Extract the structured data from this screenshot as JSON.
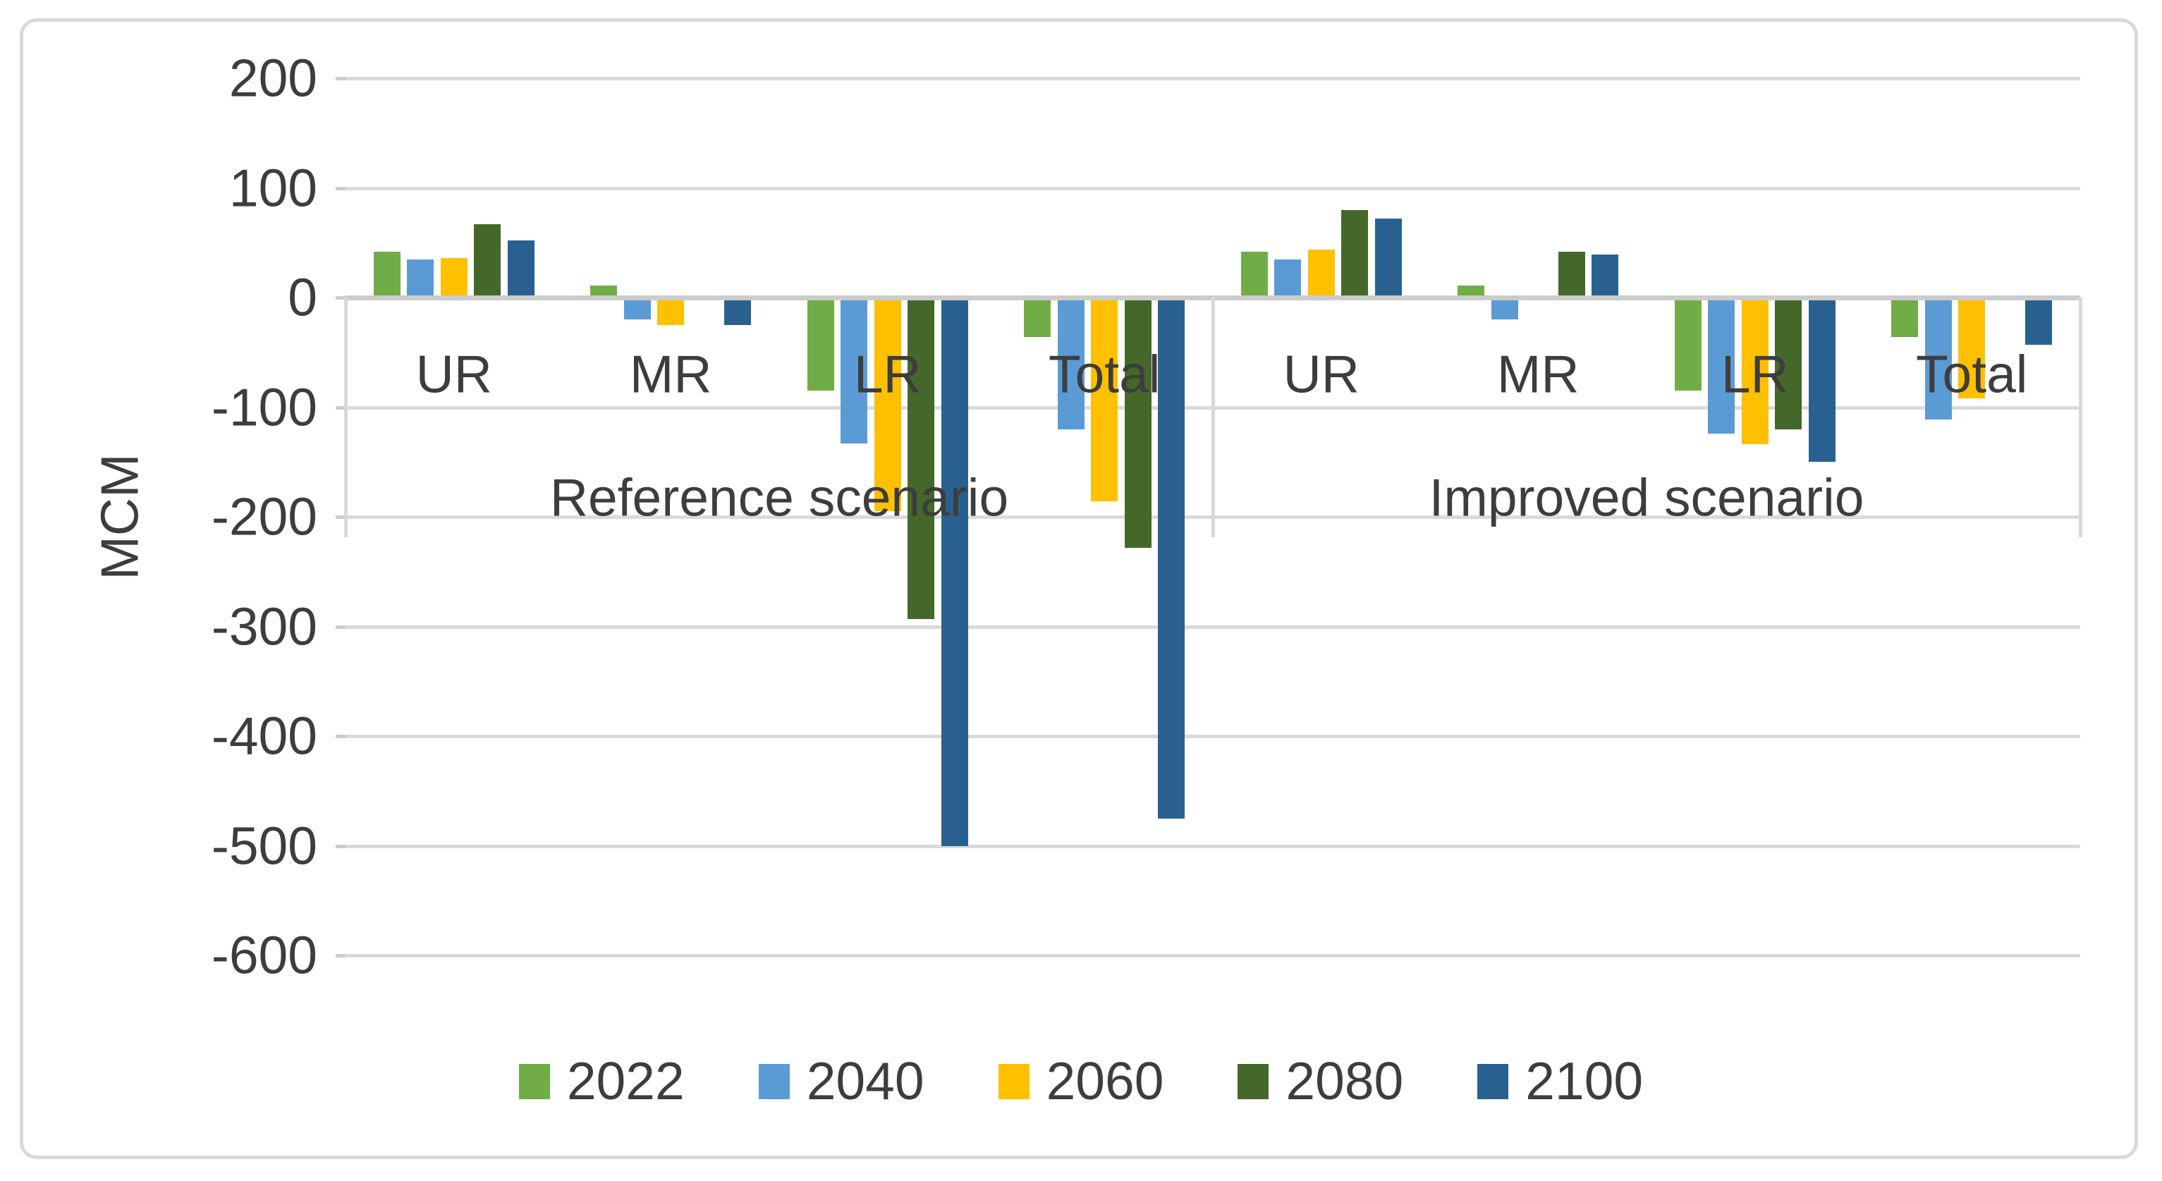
{
  "chart_data": {
    "type": "bar",
    "title": "",
    "xlabel": "",
    "ylabel": "MCM",
    "ylim": [
      -650,
      250
    ],
    "yticks": [
      200,
      100,
      0,
      -100,
      -200,
      -300,
      -400,
      -500,
      -600
    ],
    "grid": true,
    "legend_position": "bottom",
    "series_names": [
      "2022",
      "2040",
      "2060",
      "2080",
      "2100"
    ],
    "series_colors": [
      "#70AD47",
      "#5B9BD5",
      "#FFC000",
      "#44682A",
      "#28618F"
    ],
    "panels": [
      {
        "label": "Reference scenario",
        "groups": [
          {
            "category": "UR",
            "values": [
              40,
              33,
              34,
              65,
              50
            ]
          },
          {
            "category": "MR",
            "values": [
              9,
              -20,
              -25,
              0,
              -25
            ]
          },
          {
            "category": "LR",
            "values": [
              -85,
              -133,
              -195,
              -293,
              -500
            ]
          },
          {
            "category": "Total",
            "values": [
              -36,
              -120,
              -186,
              -228,
              -475
            ]
          }
        ]
      },
      {
        "label": "Improved scenario",
        "groups": [
          {
            "category": "UR",
            "values": [
              40,
              33,
              42,
              78,
              70
            ]
          },
          {
            "category": "MR",
            "values": [
              9,
              -20,
              0,
              40,
              37
            ]
          },
          {
            "category": "LR",
            "values": [
              -85,
              -124,
              -134,
              -120,
              -150
            ]
          },
          {
            "category": "Total",
            "values": [
              -36,
              -111,
              -92,
              -2,
              -43
            ]
          }
        ]
      }
    ],
    "legend": [
      {
        "label": "2022",
        "color": "#70AD47"
      },
      {
        "label": "2040",
        "color": "#5B9BD5"
      },
      {
        "label": "2060",
        "color": "#FFC000"
      },
      {
        "label": "2080",
        "color": "#44682A"
      },
      {
        "label": "2100",
        "color": "#28618F"
      }
    ]
  }
}
